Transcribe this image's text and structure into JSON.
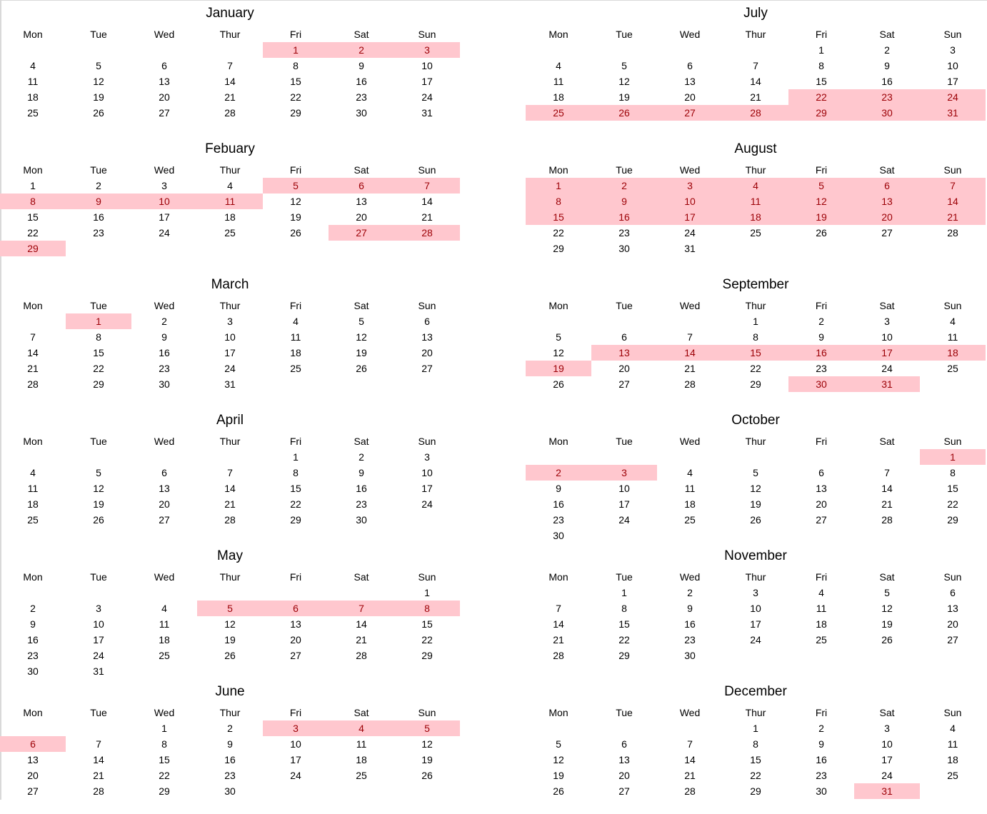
{
  "highlight": {
    "background": "#ffc7ce",
    "text": "#9c0006"
  },
  "weekdays": [
    "Mon",
    "Tue",
    "Wed",
    "Thur",
    "Fri",
    "Sat",
    "Sun"
  ],
  "months": [
    {
      "name": "January",
      "weeks": [
        [
          "",
          "",
          "",
          "",
          "1",
          "2",
          "3"
        ],
        [
          "4",
          "5",
          "6",
          "7",
          "8",
          "9",
          "10"
        ],
        [
          "11",
          "12",
          "13",
          "14",
          "15",
          "16",
          "17"
        ],
        [
          "18",
          "19",
          "20",
          "21",
          "22",
          "23",
          "24"
        ],
        [
          "25",
          "26",
          "27",
          "28",
          "29",
          "30",
          "31"
        ]
      ],
      "highlighted": [
        1,
        2,
        3
      ]
    },
    {
      "name": "Febuary",
      "weeks": [
        [
          "1",
          "2",
          "3",
          "4",
          "5",
          "6",
          "7"
        ],
        [
          "8",
          "9",
          "10",
          "11",
          "12",
          "13",
          "14"
        ],
        [
          "15",
          "16",
          "17",
          "18",
          "19",
          "20",
          "21"
        ],
        [
          "22",
          "23",
          "24",
          "25",
          "26",
          "27",
          "28"
        ],
        [
          "29",
          "",
          "",
          "",
          "",
          "",
          ""
        ]
      ],
      "highlighted": [
        5,
        6,
        7,
        8,
        9,
        10,
        11,
        27,
        28,
        29
      ]
    },
    {
      "name": "March",
      "weeks": [
        [
          "",
          "1",
          "2",
          "3",
          "4",
          "5",
          "6"
        ],
        [
          "7",
          "8",
          "9",
          "10",
          "11",
          "12",
          "13"
        ],
        [
          "14",
          "15",
          "16",
          "17",
          "18",
          "19",
          "20"
        ],
        [
          "21",
          "22",
          "23",
          "24",
          "25",
          "26",
          "27"
        ],
        [
          "28",
          "29",
          "30",
          "31",
          "",
          "",
          ""
        ]
      ],
      "highlighted": [
        1
      ]
    },
    {
      "name": "April",
      "weeks": [
        [
          "",
          "",
          "",
          "",
          "1",
          "2",
          "3"
        ],
        [
          "4",
          "5",
          "6",
          "7",
          "8",
          "9",
          "10"
        ],
        [
          "11",
          "12",
          "13",
          "14",
          "15",
          "16",
          "17"
        ],
        [
          "18",
          "19",
          "20",
          "21",
          "22",
          "23",
          "24"
        ],
        [
          "25",
          "26",
          "27",
          "28",
          "29",
          "30",
          ""
        ]
      ],
      "highlighted": []
    },
    {
      "name": "May",
      "weeks": [
        [
          "",
          "",
          "",
          "",
          "",
          "",
          "1"
        ],
        [
          "2",
          "3",
          "4",
          "5",
          "6",
          "7",
          "8"
        ],
        [
          "9",
          "10",
          "11",
          "12",
          "13",
          "14",
          "15"
        ],
        [
          "16",
          "17",
          "18",
          "19",
          "20",
          "21",
          "22"
        ],
        [
          "23",
          "24",
          "25",
          "26",
          "27",
          "28",
          "29"
        ],
        [
          "30",
          "31",
          "",
          "",
          "",
          "",
          ""
        ]
      ],
      "highlighted": [
        5,
        6,
        7,
        8
      ]
    },
    {
      "name": "June",
      "weeks": [
        [
          "",
          "",
          "1",
          "2",
          "3",
          "4",
          "5"
        ],
        [
          "6",
          "7",
          "8",
          "9",
          "10",
          "11",
          "12"
        ],
        [
          "13",
          "14",
          "15",
          "16",
          "17",
          "18",
          "19"
        ],
        [
          "20",
          "21",
          "22",
          "23",
          "24",
          "25",
          "26"
        ],
        [
          "27",
          "28",
          "29",
          "30",
          "",
          "",
          ""
        ]
      ],
      "highlighted": [
        3,
        4,
        5,
        6
      ]
    },
    {
      "name": "July",
      "weeks": [
        [
          "",
          "",
          "",
          "",
          "1",
          "2",
          "3"
        ],
        [
          "4",
          "5",
          "6",
          "7",
          "8",
          "9",
          "10"
        ],
        [
          "11",
          "12",
          "13",
          "14",
          "15",
          "16",
          "17"
        ],
        [
          "18",
          "19",
          "20",
          "21",
          "22",
          "23",
          "24"
        ],
        [
          "25",
          "26",
          "27",
          "28",
          "29",
          "30",
          "31"
        ]
      ],
      "highlighted": [
        22,
        23,
        24,
        25,
        26,
        27,
        28,
        29,
        30,
        31
      ]
    },
    {
      "name": "August",
      "weeks": [
        [
          "1",
          "2",
          "3",
          "4",
          "5",
          "6",
          "7"
        ],
        [
          "8",
          "9",
          "10",
          "11",
          "12",
          "13",
          "14"
        ],
        [
          "15",
          "16",
          "17",
          "18",
          "19",
          "20",
          "21"
        ],
        [
          "22",
          "23",
          "24",
          "25",
          "26",
          "27",
          "28"
        ],
        [
          "29",
          "30",
          "31",
          "",
          "",
          "",
          ""
        ]
      ],
      "highlighted": [
        1,
        2,
        3,
        4,
        5,
        6,
        7,
        8,
        9,
        10,
        11,
        12,
        13,
        14,
        15,
        16,
        17,
        18,
        19,
        20,
        21
      ]
    },
    {
      "name": "September",
      "weeks": [
        [
          "",
          "",
          "",
          "1",
          "2",
          "3",
          "4"
        ],
        [
          "5",
          "6",
          "7",
          "8",
          "9",
          "10",
          "11"
        ],
        [
          "12",
          "13",
          "14",
          "15",
          "16",
          "17",
          "18"
        ],
        [
          "19",
          "20",
          "21",
          "22",
          "23",
          "24",
          "25"
        ],
        [
          "26",
          "27",
          "28",
          "29",
          "30",
          "31",
          ""
        ]
      ],
      "highlighted": [
        13,
        14,
        15,
        16,
        17,
        18,
        19,
        30,
        31
      ]
    },
    {
      "name": "October",
      "weeks": [
        [
          "",
          "",
          "",
          "",
          "",
          "",
          "1"
        ],
        [
          "2",
          "3",
          "4",
          "5",
          "6",
          "7",
          "8"
        ],
        [
          "9",
          "10",
          "11",
          "12",
          "13",
          "14",
          "15"
        ],
        [
          "16",
          "17",
          "18",
          "19",
          "20",
          "21",
          "22"
        ],
        [
          "23",
          "24",
          "25",
          "26",
          "27",
          "28",
          "29"
        ],
        [
          "30",
          "",
          "",
          "",
          "",
          "",
          ""
        ]
      ],
      "highlighted": [
        1,
        2,
        3
      ]
    },
    {
      "name": "November",
      "weeks": [
        [
          "",
          "1",
          "2",
          "3",
          "4",
          "5",
          "6"
        ],
        [
          "7",
          "8",
          "9",
          "10",
          "11",
          "12",
          "13"
        ],
        [
          "14",
          "15",
          "16",
          "17",
          "18",
          "19",
          "20"
        ],
        [
          "21",
          "22",
          "23",
          "24",
          "25",
          "26",
          "27"
        ],
        [
          "28",
          "29",
          "30",
          "",
          "",
          "",
          ""
        ]
      ],
      "highlighted": []
    },
    {
      "name": "December",
      "weeks": [
        [
          "",
          "",
          "",
          "1",
          "2",
          "3",
          "4"
        ],
        [
          "5",
          "6",
          "7",
          "8",
          "9",
          "10",
          "11"
        ],
        [
          "12",
          "13",
          "14",
          "15",
          "16",
          "17",
          "18"
        ],
        [
          "19",
          "20",
          "21",
          "22",
          "23",
          "24",
          "25"
        ],
        [
          "26",
          "27",
          "28",
          "29",
          "30",
          "31",
          ""
        ]
      ],
      "highlighted": [
        31
      ]
    }
  ]
}
